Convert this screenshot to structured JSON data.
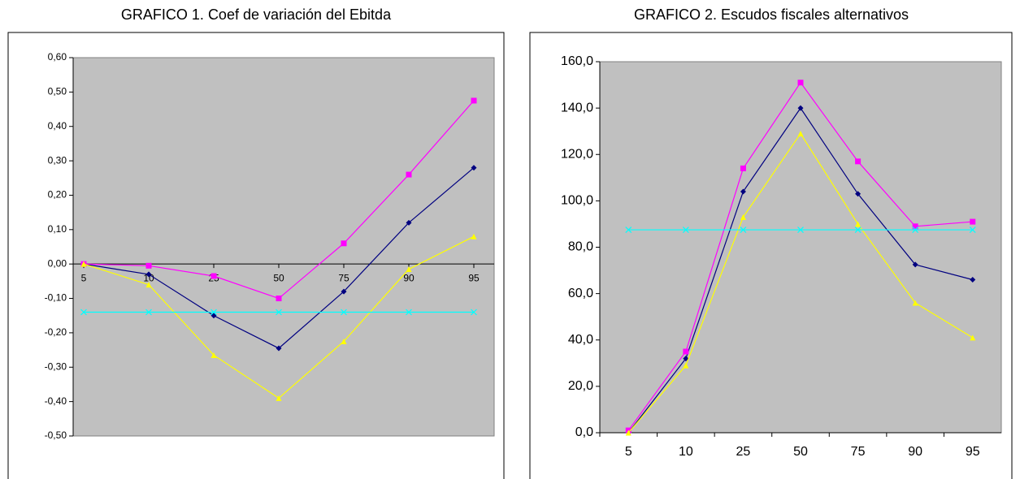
{
  "chart_data": [
    {
      "type": "line",
      "title": "GRAFICO 1. Coef de variación del Ebitda",
      "categories": [
        "5",
        "10",
        "25",
        "50",
        "75",
        "90",
        "95"
      ],
      "series": [
        {
          "color": "#000080",
          "marker": "diamond",
          "values": [
            0,
            -0.03,
            -0.15,
            -0.245,
            -0.08,
            0.12,
            0.28
          ]
        },
        {
          "color": "#ff00ff",
          "marker": "square",
          "values": [
            0,
            -0.005,
            -0.035,
            -0.1,
            0.06,
            0.26,
            0.475
          ]
        },
        {
          "color": "#ffff00",
          "marker": "triangle",
          "values": [
            0,
            -0.06,
            -0.265,
            -0.39,
            -0.225,
            -0.015,
            0.08
          ]
        },
        {
          "color": "#00ffff",
          "marker": "x",
          "values": [
            -0.14,
            -0.14,
            -0.14,
            -0.14,
            -0.14,
            -0.14,
            -0.14
          ]
        }
      ],
      "ylim": [
        -0.5,
        0.6
      ],
      "yticks": [
        {
          "value": -0.5,
          "label": "-0,50"
        },
        {
          "value": -0.4,
          "label": "-0,40"
        },
        {
          "value": -0.3,
          "label": "-0,30"
        },
        {
          "value": -0.2,
          "label": "-0,20"
        },
        {
          "value": -0.1,
          "label": "-0,10"
        },
        {
          "value": 0,
          "label": "0,00"
        },
        {
          "value": 0.1,
          "label": "0,10"
        },
        {
          "value": 0.2,
          "label": "0,20"
        },
        {
          "value": 0.3,
          "label": "0,30"
        },
        {
          "value": 0.4,
          "label": "0,40"
        },
        {
          "value": 0.5,
          "label": "0,50"
        },
        {
          "value": 0.6,
          "label": "0,60"
        }
      ],
      "grid": false,
      "plot_background": "#c0c0c0"
    },
    {
      "type": "line",
      "title": "GRAFICO 2. Escudos fiscales alternativos",
      "categories": [
        "5",
        "10",
        "25",
        "50",
        "75",
        "90",
        "95"
      ],
      "series": [
        {
          "color": "#000080",
          "marker": "diamond",
          "values": [
            0,
            32,
            104,
            140,
            103,
            72.5,
            66
          ]
        },
        {
          "color": "#ff00ff",
          "marker": "square",
          "values": [
            1,
            35,
            114,
            151,
            117,
            89,
            91
          ]
        },
        {
          "color": "#ffff00",
          "marker": "triangle",
          "values": [
            0,
            29,
            93,
            129,
            90,
            56,
            41
          ]
        },
        {
          "color": "#00ffff",
          "marker": "x",
          "values": [
            87.5,
            87.5,
            87.5,
            87.5,
            87.5,
            87.5,
            87.5
          ]
        }
      ],
      "ylim": [
        0,
        160
      ],
      "yticks": [
        {
          "value": 0,
          "label": "0,0"
        },
        {
          "value": 20,
          "label": "20,0"
        },
        {
          "value": 40,
          "label": "40,0"
        },
        {
          "value": 60,
          "label": "60,0"
        },
        {
          "value": 80,
          "label": "80,0"
        },
        {
          "value": 100,
          "label": "100,0"
        },
        {
          "value": 120,
          "label": "120,0"
        },
        {
          "value": 140,
          "label": "140,0"
        },
        {
          "value": 160,
          "label": "160,0"
        }
      ],
      "grid": false,
      "plot_background": "#c0c0c0"
    }
  ]
}
